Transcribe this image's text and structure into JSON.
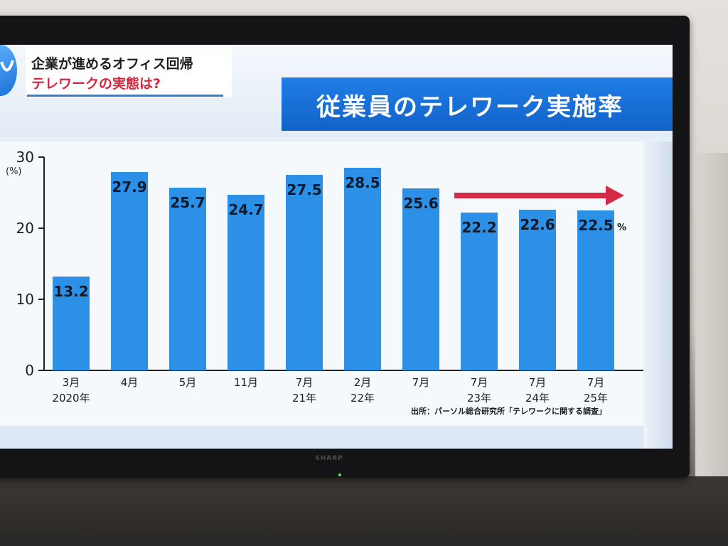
{
  "topic": {
    "line1": "企業が進めるオフィス回帰",
    "line2": "テレワークの実態は?"
  },
  "title": "従業員のテレワーク実施率",
  "source": "出所：パーソル総合研究所「テレワークに関する調査」",
  "tv_brand": "SHARP",
  "chart_data": {
    "type": "bar",
    "title": "従業員のテレワーク実施率",
    "unit": "(%)",
    "unit_suffix": "%",
    "ylim": [
      0,
      30
    ],
    "yticks": [
      0,
      10,
      20,
      30
    ],
    "categories": [
      {
        "month": "3月",
        "year": "2020年"
      },
      {
        "month": "4月",
        "year": ""
      },
      {
        "month": "5月",
        "year": ""
      },
      {
        "month": "11月",
        "year": ""
      },
      {
        "month": "7月",
        "year": "21年"
      },
      {
        "month": "2月",
        "year": "22年"
      },
      {
        "month": "7月",
        "year": ""
      },
      {
        "month": "7月",
        "year": "23年"
      },
      {
        "month": "7月",
        "year": "24年"
      },
      {
        "month": "7月",
        "year": "25年"
      }
    ],
    "values": [
      13.2,
      27.9,
      25.7,
      24.7,
      27.5,
      28.5,
      25.6,
      22.2,
      22.6,
      22.5
    ],
    "grid": false,
    "bar_color": "#2b90e6",
    "annotation": "red arrow pointing right above 2023–2025 bars (flat trend)",
    "arrow_color": "#d42a46"
  }
}
